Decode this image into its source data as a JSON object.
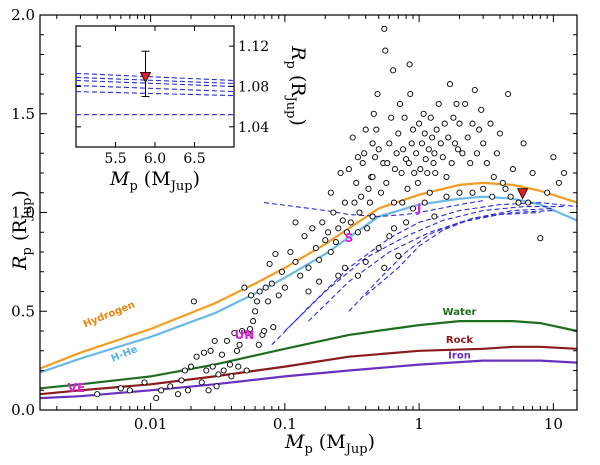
{
  "chart_data": {
    "type": "scatter",
    "xscale": "log",
    "xlim": [
      0.0015,
      15
    ],
    "ylim": [
      0.0,
      2.0
    ],
    "xlabel": {
      "main": "M",
      "sub": "p",
      "unit_open": " (M",
      "unit_sub": "Jup",
      "unit_close": ")"
    },
    "ylabel": {
      "main": "R",
      "sub": "p",
      "unit_open": " (R",
      "unit_sub": "Jup",
      "unit_close": ")"
    },
    "x_ticks": [
      {
        "value": 0.01,
        "label": "0.01"
      },
      {
        "value": 0.1,
        "label": "0.1"
      },
      {
        "value": 1,
        "label": "1"
      },
      {
        "value": 10,
        "label": "10"
      }
    ],
    "y_ticks": [
      {
        "value": 0.0,
        "label": "0.0"
      },
      {
        "value": 0.5,
        "label": "0.5"
      },
      {
        "value": 1.0,
        "label": "1.0"
      },
      {
        "value": 1.5,
        "label": "1.5"
      },
      {
        "value": 2.0,
        "label": "2.0"
      }
    ],
    "curves": [
      {
        "name": "Hydrogen",
        "color": "#f39c1f",
        "label_color": "#e8860c",
        "x": [
          0.0015,
          0.003,
          0.01,
          0.03,
          0.06,
          0.1,
          0.2,
          0.5,
          1,
          2,
          3,
          5,
          8,
          15
        ],
        "y": [
          0.21,
          0.29,
          0.41,
          0.54,
          0.64,
          0.72,
          0.84,
          1.02,
          1.09,
          1.14,
          1.15,
          1.14,
          1.11,
          1.05
        ]
      },
      {
        "name": "H-He",
        "color": "#6ab8e8",
        "label_color": "#5ab0e0",
        "x": [
          0.0015,
          0.003,
          0.01,
          0.03,
          0.06,
          0.1,
          0.2,
          0.5,
          1,
          2,
          3,
          5,
          8,
          15
        ],
        "y": [
          0.19,
          0.26,
          0.37,
          0.49,
          0.59,
          0.67,
          0.79,
          0.98,
          1.04,
          1.07,
          1.08,
          1.07,
          1.04,
          0.96
        ]
      },
      {
        "name": "Water",
        "color": "#1f6e1f",
        "label_color": "#1f6e1f",
        "x": [
          0.0015,
          0.003,
          0.01,
          0.03,
          0.1,
          0.3,
          1,
          2,
          3,
          5,
          8,
          15
        ],
        "y": [
          0.11,
          0.13,
          0.17,
          0.23,
          0.31,
          0.38,
          0.43,
          0.45,
          0.45,
          0.45,
          0.44,
          0.4
        ]
      },
      {
        "name": "Rock",
        "color": "#8b1a1a",
        "label_color": "#8b1a1a",
        "x": [
          0.0015,
          0.003,
          0.01,
          0.03,
          0.1,
          0.3,
          1,
          3,
          5,
          8,
          15
        ],
        "y": [
          0.08,
          0.1,
          0.13,
          0.17,
          0.22,
          0.27,
          0.3,
          0.31,
          0.32,
          0.32,
          0.31
        ]
      },
      {
        "name": "Iron",
        "color": "#6a2fc0",
        "label_color": "#6a2fc0",
        "x": [
          0.0015,
          0.003,
          0.01,
          0.03,
          0.1,
          0.3,
          1,
          3,
          5,
          8,
          15
        ],
        "y": [
          0.06,
          0.07,
          0.1,
          0.13,
          0.17,
          0.2,
          0.23,
          0.25,
          0.25,
          0.25,
          0.24
        ]
      }
    ],
    "dashed_curves": [
      {
        "x": [
          0.07,
          0.12,
          0.2,
          0.3,
          0.5,
          0.8,
          1.2,
          2,
          3
        ],
        "y": [
          1.05,
          1.03,
          1.01,
          0.99,
          0.98,
          0.99,
          1.01,
          1.04,
          1.06
        ]
      },
      {
        "x": [
          0.08,
          0.15,
          0.3,
          0.6,
          1,
          2,
          4,
          8,
          15
        ],
        "y": [
          0.33,
          0.52,
          0.72,
          0.87,
          0.95,
          1.01,
          1.04,
          1.05,
          1.03
        ]
      },
      {
        "x": [
          0.1,
          0.2,
          0.4,
          0.8,
          1.5,
          3,
          6,
          12
        ],
        "y": [
          0.4,
          0.6,
          0.77,
          0.88,
          0.96,
          1.01,
          1.03,
          1.03
        ]
      },
      {
        "x": [
          0.15,
          0.3,
          0.6,
          1.2,
          2.5,
          5,
          10
        ],
        "y": [
          0.45,
          0.65,
          0.8,
          0.9,
          0.97,
          1.0,
          1.01
        ]
      },
      {
        "x": [
          0.3,
          0.5,
          0.8,
          1.2,
          2,
          4,
          8
        ],
        "y": [
          0.5,
          0.66,
          0.8,
          0.89,
          0.95,
          0.99,
          1.0
        ]
      },
      {
        "x": [
          0.4,
          0.7,
          1.0,
          1.5,
          2.5,
          5,
          10
        ],
        "y": [
          0.58,
          0.72,
          0.83,
          0.91,
          0.97,
          1.01,
          1.02
        ]
      }
    ],
    "planets": [
      {
        "label": "J",
        "x": 1.0,
        "y": 1.0,
        "color": "#e020e0"
      },
      {
        "label": "S",
        "x": 0.3,
        "y": 0.85,
        "color": "#e020e0"
      },
      {
        "label": "UN",
        "x": 0.05,
        "y": 0.36,
        "color": "#e020e0"
      },
      {
        "label": "VE",
        "x": 0.0028,
        "y": 0.09,
        "color": "#e020e0"
      }
    ],
    "highlight": {
      "x": 5.9,
      "y": 1.09,
      "color": "#e02020"
    },
    "scatter": [
      [
        0.004,
        0.08
      ],
      [
        0.006,
        0.11
      ],
      [
        0.007,
        0.1
      ],
      [
        0.009,
        0.14
      ],
      [
        0.011,
        0.06
      ],
      [
        0.012,
        0.1
      ],
      [
        0.014,
        0.12
      ],
      [
        0.016,
        0.08
      ],
      [
        0.017,
        0.15
      ],
      [
        0.018,
        0.2
      ],
      [
        0.019,
        0.1
      ],
      [
        0.02,
        0.22
      ],
      [
        0.021,
        0.55
      ],
      [
        0.022,
        0.27
      ],
      [
        0.024,
        0.14
      ],
      [
        0.025,
        0.29
      ],
      [
        0.026,
        0.2
      ],
      [
        0.027,
        0.1
      ],
      [
        0.028,
        0.3
      ],
      [
        0.029,
        0.22
      ],
      [
        0.03,
        0.35
      ],
      [
        0.031,
        0.12
      ],
      [
        0.032,
        0.18
      ],
      [
        0.034,
        0.28
      ],
      [
        0.035,
        0.2
      ],
      [
        0.037,
        0.35
      ],
      [
        0.039,
        0.23
      ],
      [
        0.04,
        0.17
      ],
      [
        0.042,
        0.39
      ],
      [
        0.044,
        0.3
      ],
      [
        0.045,
        0.22
      ],
      [
        0.046,
        0.33
      ],
      [
        0.048,
        0.4
      ],
      [
        0.05,
        0.62
      ],
      [
        0.052,
        0.2
      ],
      [
        0.053,
        0.39
      ],
      [
        0.055,
        0.41
      ],
      [
        0.056,
        0.58
      ],
      [
        0.058,
        0.45
      ],
      [
        0.06,
        0.5
      ],
      [
        0.062,
        0.55
      ],
      [
        0.064,
        0.33
      ],
      [
        0.065,
        0.6
      ],
      [
        0.068,
        0.38
      ],
      [
        0.07,
        0.4
      ],
      [
        0.072,
        0.62
      ],
      [
        0.075,
        0.55
      ],
      [
        0.077,
        0.74
      ],
      [
        0.08,
        0.64
      ],
      [
        0.082,
        0.42
      ],
      [
        0.085,
        0.79
      ],
      [
        0.09,
        0.58
      ],
      [
        0.095,
        0.7
      ],
      [
        0.1,
        0.62
      ],
      [
        0.11,
        0.8
      ],
      [
        0.12,
        0.75
      ],
      [
        0.13,
        0.68
      ],
      [
        0.14,
        0.88
      ],
      [
        0.15,
        0.72
      ],
      [
        0.16,
        0.92
      ],
      [
        0.17,
        0.82
      ],
      [
        0.18,
        0.76
      ],
      [
        0.19,
        0.95
      ],
      [
        0.2,
        0.86
      ],
      [
        0.21,
        0.9
      ],
      [
        0.22,
        0.8
      ],
      [
        0.23,
        1.0
      ],
      [
        0.24,
        0.85
      ],
      [
        0.25,
        0.92
      ],
      [
        0.26,
        1.2
      ],
      [
        0.27,
        0.96
      ],
      [
        0.28,
        1.05
      ],
      [
        0.29,
        0.9
      ],
      [
        0.3,
        1.22
      ],
      [
        0.31,
        0.95
      ],
      [
        0.32,
        1.38
      ],
      [
        0.33,
        1.05
      ],
      [
        0.34,
        1.15
      ],
      [
        0.35,
        0.9
      ],
      [
        0.36,
        1.0
      ],
      [
        0.37,
        1.08
      ],
      [
        0.38,
        1.25
      ],
      [
        0.39,
        1.3
      ],
      [
        0.4,
        1.42
      ],
      [
        0.41,
        0.92
      ],
      [
        0.42,
        1.12
      ],
      [
        0.43,
        1.05
      ],
      [
        0.44,
        1.18
      ],
      [
        0.45,
        1.35
      ],
      [
        0.46,
        1.5
      ],
      [
        0.47,
        1.28
      ],
      [
        0.48,
        1.42
      ],
      [
        0.49,
        1.6
      ],
      [
        0.5,
        1.32
      ],
      [
        0.52,
        1.1
      ],
      [
        0.54,
        1.25
      ],
      [
        0.55,
        1.93
      ],
      [
        0.56,
        1.82
      ],
      [
        0.57,
        1.15
      ],
      [
        0.58,
        1.25
      ],
      [
        0.6,
        1.35
      ],
      [
        0.62,
        1.48
      ],
      [
        0.64,
        1.72
      ],
      [
        0.65,
        1.05
      ],
      [
        0.66,
        1.22
      ],
      [
        0.68,
        1.3
      ],
      [
        0.7,
        1.4
      ],
      [
        0.72,
        1.55
      ],
      [
        0.74,
        1.2
      ],
      [
        0.75,
        1.05
      ],
      [
        0.76,
        1.32
      ],
      [
        0.78,
        1.48
      ],
      [
        0.8,
        1.27
      ],
      [
        0.82,
        1.12
      ],
      [
        0.84,
        1.25
      ],
      [
        0.85,
        1.75
      ],
      [
        0.86,
        1.6
      ],
      [
        0.88,
        1.35
      ],
      [
        0.9,
        1.42
      ],
      [
        0.92,
        1.2
      ],
      [
        0.95,
        1.3
      ],
      [
        0.98,
        1.15
      ],
      [
        1.0,
        1.45
      ],
      [
        1.02,
        1.22
      ],
      [
        1.05,
        1.35
      ],
      [
        1.08,
        1.5
      ],
      [
        1.1,
        1.4
      ],
      [
        1.12,
        1.27
      ],
      [
        1.15,
        1.2
      ],
      [
        1.18,
        1.32
      ],
      [
        1.2,
        1.1
      ],
      [
        1.22,
        1.48
      ],
      [
        1.25,
        1.38
      ],
      [
        1.28,
        1.25
      ],
      [
        1.3,
        1.3
      ],
      [
        1.32,
        1.2
      ],
      [
        1.35,
        1.42
      ],
      [
        1.4,
        1.55
      ],
      [
        1.45,
        1.35
      ],
      [
        1.5,
        1.28
      ],
      [
        1.55,
        1.45
      ],
      [
        1.6,
        1.18
      ],
      [
        1.65,
        1.38
      ],
      [
        1.7,
        1.65
      ],
      [
        1.75,
        1.25
      ],
      [
        1.8,
        1.48
      ],
      [
        1.85,
        1.35
      ],
      [
        1.9,
        1.55
      ],
      [
        1.95,
        1.32
      ],
      [
        2.0,
        1.45
      ],
      [
        2.1,
        1.3
      ],
      [
        2.2,
        1.55
      ],
      [
        2.3,
        1.38
      ],
      [
        2.4,
        1.25
      ],
      [
        2.5,
        1.45
      ],
      [
        2.6,
        1.62
      ],
      [
        2.7,
        1.3
      ],
      [
        2.8,
        1.42
      ],
      [
        2.9,
        1.52
      ],
      [
        3.0,
        1.35
      ],
      [
        3.2,
        1.25
      ],
      [
        3.4,
        1.45
      ],
      [
        3.6,
        1.18
      ],
      [
        3.8,
        1.3
      ],
      [
        4.0,
        1.4
      ],
      [
        4.2,
        1.15
      ],
      [
        4.4,
        1.12
      ],
      [
        4.6,
        1.6
      ],
      [
        4.8,
        1.08
      ],
      [
        5.0,
        1.22
      ],
      [
        5.5,
        1.05
      ],
      [
        6.0,
        1.35
      ],
      [
        6.5,
        1.05
      ],
      [
        7.0,
        1.2
      ],
      [
        8.0,
        0.87
      ],
      [
        9.0,
        1.1
      ],
      [
        10.0,
        1.28
      ],
      [
        11.0,
        1.15
      ],
      [
        12.0,
        1.2
      ],
      [
        0.35,
        0.68
      ],
      [
        0.4,
        0.75
      ],
      [
        0.5,
        0.82
      ],
      [
        0.6,
        0.88
      ],
      [
        0.7,
        0.78
      ],
      [
        0.8,
        0.95
      ],
      [
        0.45,
        0.98
      ],
      [
        0.55,
        0.72
      ],
      [
        0.65,
        0.92
      ],
      [
        0.9,
        1.02
      ],
      [
        1.1,
        1.05
      ],
      [
        1.3,
        0.98
      ],
      [
        1.6,
        1.08
      ],
      [
        2.0,
        1.1
      ],
      [
        2.5,
        1.1
      ],
      [
        3.0,
        1.12
      ],
      [
        3.5,
        1.08
      ],
      [
        0.25,
        0.68
      ],
      [
        0.28,
        0.72
      ],
      [
        0.15,
        0.6
      ],
      [
        0.18,
        0.65
      ],
      [
        0.22,
        1.1
      ],
      [
        0.12,
        0.95
      ],
      [
        0.35,
        1.28
      ],
      [
        0.45,
        1.18
      ]
    ]
  },
  "inset": {
    "xlim": [
      5.0,
      7.0
    ],
    "ylim": [
      1.02,
      1.14
    ],
    "xlabel": {
      "main": "M",
      "sub": "p",
      "unit_open": " (M",
      "unit_sub": "Jup",
      "unit_close": ")"
    },
    "ylabel": {
      "main": "R",
      "sub": "p",
      "unit_open": " (R",
      "unit_sub": "Jup",
      "unit_close": ")"
    },
    "x_ticks": [
      {
        "value": 5.5,
        "label": "5.5"
      },
      {
        "value": 6.0,
        "label": "6.0"
      },
      {
        "value": 6.5,
        "label": "6.5"
      }
    ],
    "y_ticks": [
      {
        "value": 1.04,
        "label": "1.04"
      },
      {
        "value": 1.08,
        "label": "1.08"
      },
      {
        "value": 1.12,
        "label": "1.12"
      }
    ],
    "point": {
      "x": 5.88,
      "y": 1.089,
      "err_low": 1.07,
      "err_high": 1.115,
      "color": "#e02020"
    },
    "dashed": [
      {
        "x": [
          5.0,
          7.0
        ],
        "y": [
          1.093,
          1.086
        ]
      },
      {
        "x": [
          5.0,
          7.0
        ],
        "y": [
          1.089,
          1.083
        ]
      },
      {
        "x": [
          5.0,
          7.0
        ],
        "y": [
          1.086,
          1.08
        ]
      },
      {
        "x": [
          5.0,
          7.0
        ],
        "y": [
          1.081,
          1.075
        ]
      },
      {
        "x": [
          5.0,
          7.0
        ],
        "y": [
          1.075,
          1.071
        ]
      },
      {
        "x": [
          5.0,
          7.0
        ],
        "y": [
          1.052,
          1.052
        ]
      }
    ],
    "dash_color": "#2a2ad8"
  }
}
